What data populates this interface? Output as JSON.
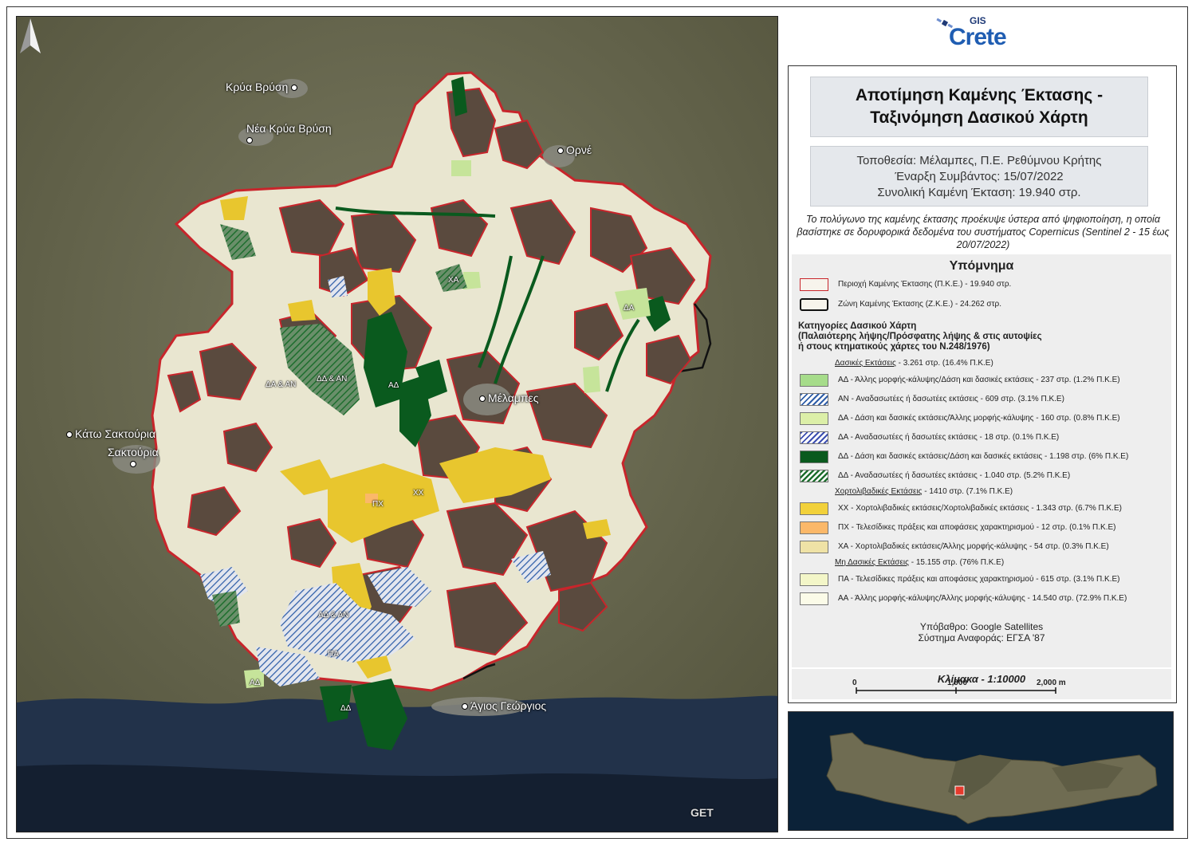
{
  "map": {
    "place_labels": [
      {
        "name": "Κρύα Βρύση"
      },
      {
        "name": "Νέα Κρύα Βρύση"
      },
      {
        "name": "Ορνέ"
      },
      {
        "name": "Κάτω Σακτούρια"
      },
      {
        "name": "Σακτούρια"
      },
      {
        "name": "Μέλαμπες"
      },
      {
        "name": "Άγιος Γεώργιος"
      }
    ],
    "category_labels": [
      "ΧΑ",
      "ΔΑ",
      "ΔΑ & ΑΝ",
      "ΔΔ & ΑΝ",
      "ΑΔ",
      "ΠΧ",
      "ΧΧ",
      "ΑΔ & ΑΝ",
      "ΠΑ",
      "ΑΔ",
      "ΔΔ"
    ],
    "logo_text": "GET"
  },
  "logo": {
    "gis": "GIS",
    "crete": "Crete"
  },
  "title": {
    "line1": "Αποτίμηση Καμένης Έκτασης -",
    "line2": "Ταξινόμηση Δασικού Χάρτη"
  },
  "info": {
    "location": "Τοποθεσία: Μέλαμπες, Π.Ε. Ρεθύμνου Κρήτης",
    "start": "Έναρξη Συμβάντος: 15/07/2022",
    "total": "Συνολική Καμένη Έκταση: 19.940 στρ."
  },
  "note": "Το πολύγωνο της καμένης έκτασης προέκυψε ύστερα από ψηφιοποίηση, η οποία βασίστηκε σε δορυφορικά δεδομένα του συστήματος Copernicus (Sentinel 2 - 15 έως 20/07/2022)",
  "legend": {
    "title": "Υπόμνημα",
    "burned_area": "Περιοχή Καμένης Έκτασης (Π.Κ.Ε.) - 19.940 στρ.",
    "burned_zone": "Ζώνη Καμένης Έκτασης (Ζ.Κ.Ε.) - 24.262 στρ.",
    "categories_heading": [
      "Κατηγορίες Δασικού Χάρτη",
      "(Παλαιότερης λήψης/Πρόσφατης λήψης & στις αυτοψίες",
      "ή στους κτηματικούς χάρτες του Ν.248/1976)"
    ],
    "groups": [
      {
        "name": "Δασικές Εκτάσεις",
        "summary": " - 3.261 στρ. (16.4% Π.Κ.Ε)",
        "items": [
          {
            "label": "ΑΔ - Άλλης μορφής-κάλυψης/Δάση και δασικές εκτάσεις  - 237 στρ. (1.2% Π.Κ.Ε)",
            "color": "#a6dc8a",
            "hatch": false
          },
          {
            "label": "ΑΝ - Αναδασωτέες ή δασωτέες εκτάσεις - 609 στρ. (3.1% Π.Κ.Ε)",
            "color": "#ffffff",
            "hatch": true,
            "hatch_color": "#2f5ea8"
          },
          {
            "label": "ΔΑ - Δάση και δασικές εκτάσεις/Άλλης μορφής-κάλυψης - 160 στρ. (0.8% Π.Κ.Ε)",
            "color": "#dcefa8",
            "hatch": false
          },
          {
            "label": "ΔΑ - Αναδασωτέες ή δασωτέες εκτάσεις - 18 στρ. (0.1% Π.Κ.Ε)",
            "color": "#ffffff",
            "hatch": true,
            "hatch_color": "#3c4fb0"
          },
          {
            "label": "ΔΔ - Δάση και δασικές εκτάσεις/Δάση και δασικές εκτάσεις - 1.198 στρ. (6% Π.Κ.Ε)",
            "color": "#0a5a1e",
            "hatch": false
          },
          {
            "label": "ΔΔ - Αναδασωτέες ή δασωτέες εκτάσεις - 1.040 στρ. (5.2% Π.Κ.Ε)",
            "color": "#ffffff",
            "hatch": true,
            "hatch_color": "#1e6e2e"
          }
        ]
      },
      {
        "name": "Χορτολιβαδικές Εκτάσεις",
        "summary": " - 1410 στρ. (7.1% Π.Κ.Ε)",
        "items": [
          {
            "label": "ΧΧ - Χορτολιβαδικές εκτάσεις/Χορτολιβαδικές εκτάσεις - 1.343 στρ. (6.7% Π.Κ.Ε)",
            "color": "#f2d13a",
            "hatch": false
          },
          {
            "label": "ΠΧ - Τελεσίδικες πράξεις και αποφάσεις χαρακτηρισμού - 12 στρ. (0.1% Π.Κ.Ε)",
            "color": "#fbb869",
            "hatch": false
          },
          {
            "label": "ΧΑ - Χορτολιβαδικές εκτάσεις/Άλλης μορφής-κάλυψης - 54 στρ. (0.3% Π.Κ.Ε)",
            "color": "#efe2a6",
            "hatch": false
          }
        ]
      },
      {
        "name": "Μη Δασικές Εκτάσεις",
        "summary": " - 15.155 στρ. (76% Π.Κ.Ε)",
        "items": [
          {
            "label": "ΠΑ - Τελεσίδικες πράξεις και αποφάσεις χαρακτηρισμού - 615 στρ. (3.1% Π.Κ.Ε)",
            "color": "#f3f6c8",
            "hatch": false
          },
          {
            "label": "ΑΑ - Άλλης μορφής-κάλυψης/Άλλης μορφής-κάλυψης - 14.540 στρ. (72.9% Π.Κ.Ε)",
            "color": "#fbfbe8",
            "hatch": false
          }
        ]
      }
    ],
    "basemap": "Υπόβαθρο: Google Satellites",
    "crs": "Σύστημα Αναφοράς: ΕΓΣΑ '87"
  },
  "scale": {
    "title": "Κλίμακα - 1:10000",
    "ticks": [
      "0",
      "1,000",
      "2,000 m"
    ]
  },
  "colors": {
    "burn_outline": "#c8252b",
    "zone_outline": "#111111",
    "non_forest": "#e9e6d0",
    "burnt_dark": "#5a4a3e"
  }
}
